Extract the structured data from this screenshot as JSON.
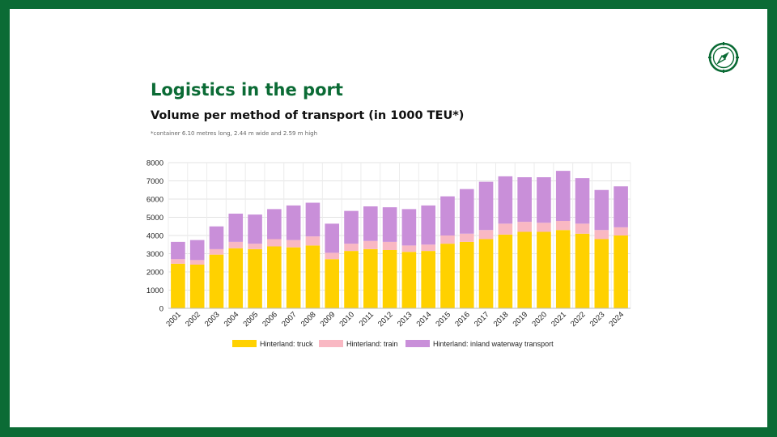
{
  "page": {
    "title": "Logistics in the port",
    "subtitle": "Volume per method of transport (in 1000 TEU*)",
    "footnote": "*container 6.10 metres long, 2.44 m wide and 2.59 m high",
    "icon": "compass-icon",
    "colors": {
      "frame": "#0b6b35",
      "title": "#0b6b35"
    }
  },
  "chart_data": {
    "type": "bar",
    "stacked": true,
    "categories": [
      "2001",
      "2002",
      "2003",
      "2004",
      "2005",
      "2006",
      "2007",
      "2008",
      "2009",
      "2010",
      "2011",
      "2012",
      "2013",
      "2014",
      "2015",
      "2016",
      "2017",
      "2018",
      "2019",
      "2020",
      "2021",
      "2022",
      "2023",
      "2024"
    ],
    "series": [
      {
        "name": "Hinterland: truck",
        "color": "#ffd100",
        "values": [
          2450,
          2400,
          2950,
          3300,
          3250,
          3400,
          3350,
          3450,
          2700,
          3150,
          3250,
          3200,
          3100,
          3150,
          3550,
          3650,
          3800,
          4050,
          4200,
          4200,
          4300,
          4100,
          3800,
          4000
        ]
      },
      {
        "name": "Hinterland: train",
        "color": "#f9b8c3",
        "values": [
          250,
          250,
          300,
          350,
          300,
          400,
          400,
          500,
          350,
          400,
          450,
          450,
          350,
          350,
          450,
          450,
          500,
          600,
          550,
          500,
          500,
          550,
          500,
          450
        ]
      },
      {
        "name": "Hinterland: inland waterway transport",
        "color": "#c98fd9",
        "values": [
          950,
          1100,
          1250,
          1550,
          1600,
          1650,
          1900,
          1850,
          1600,
          1800,
          1900,
          1900,
          2000,
          2150,
          2150,
          2450,
          2650,
          2600,
          2450,
          2500,
          2750,
          2500,
          2200,
          2250
        ]
      }
    ],
    "ylim": [
      0,
      8000
    ],
    "yticks": [
      "0",
      "1000",
      "2000",
      "3000",
      "4000",
      "5000",
      "6000",
      "7000",
      "8000"
    ],
    "grid": true,
    "legend_position": "bottom"
  }
}
